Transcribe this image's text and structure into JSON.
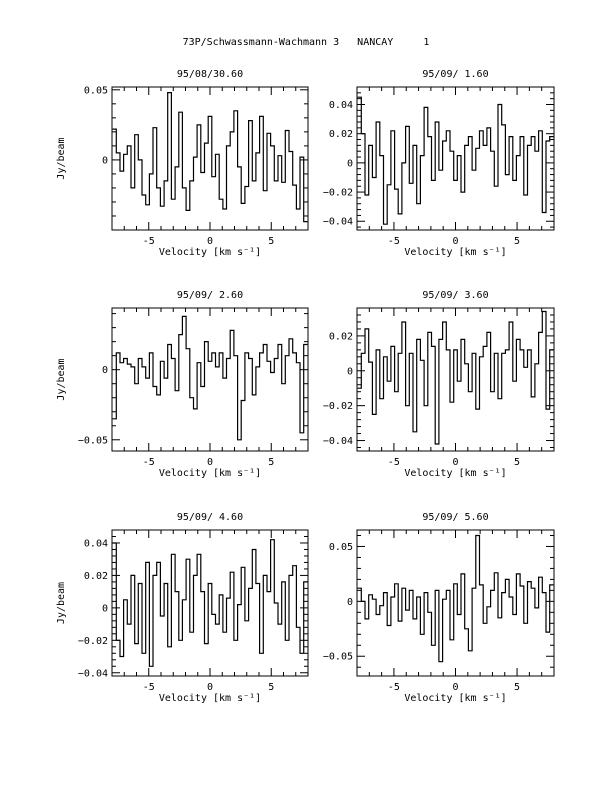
{
  "page": {
    "title": "73P/Schwassmann-Wachmann 3   NANCAY     1"
  },
  "chart_data": [
    {
      "type": "line",
      "title": "95/08/30.60",
      "xlabel": "Velocity [km s⁻¹]",
      "ylabel": "Jy/beam",
      "xlim": [
        -8,
        8
      ],
      "ylim": [
        -0.05,
        0.052
      ],
      "xticks": [
        -5,
        0,
        5
      ],
      "yticks": [
        0.05,
        0
      ],
      "ytick_labels": [
        "0.05",
        "0"
      ],
      "x": [
        -7.8,
        -7.5,
        -7.2,
        -6.9,
        -6.6,
        -6.3,
        -6.0,
        -5.7,
        -5.4,
        -5.1,
        -4.8,
        -4.5,
        -4.2,
        -3.9,
        -3.6,
        -3.3,
        -3.0,
        -2.7,
        -2.4,
        -2.1,
        -1.8,
        -1.5,
        -1.2,
        -0.9,
        -0.6,
        -0.3,
        0.0,
        0.3,
        0.6,
        0.9,
        1.2,
        1.5,
        1.8,
        2.1,
        2.4,
        2.7,
        3.0,
        3.3,
        3.6,
        3.9,
        4.2,
        4.5,
        4.8,
        5.1,
        5.4,
        5.7,
        6.0,
        6.3,
        6.6,
        6.9,
        7.2,
        7.5,
        7.8
      ],
      "values": [
        0.022,
        0.005,
        -0.008,
        0.004,
        0.01,
        -0.02,
        0.018,
        0.0,
        -0.025,
        -0.032,
        -0.01,
        0.023,
        -0.02,
        -0.033,
        -0.015,
        0.048,
        -0.028,
        -0.005,
        0.034,
        -0.02,
        -0.036,
        -0.015,
        0.002,
        0.025,
        -0.009,
        0.012,
        0.031,
        -0.012,
        0.004,
        -0.028,
        -0.035,
        0.01,
        0.02,
        0.035,
        -0.005,
        -0.031,
        -0.019,
        0.028,
        -0.015,
        0.005,
        0.031,
        -0.022,
        0.019,
        0.01,
        -0.015,
        0.003,
        -0.016,
        0.021,
        0.006,
        -0.018,
        -0.035,
        0.002,
        -0.044
      ]
    },
    {
      "type": "line",
      "title": "95/09/ 1.60",
      "xlabel": "Velocity [km s⁻¹]",
      "ylabel": "",
      "xlim": [
        -8,
        8
      ],
      "ylim": [
        -0.046,
        0.052
      ],
      "xticks": [
        -5,
        0,
        5
      ],
      "yticks": [
        0.04,
        0.02,
        0,
        -0.02,
        -0.04
      ],
      "ytick_labels": [
        "0.04",
        "0.02",
        "0",
        "−0.02",
        "−0.04"
      ],
      "x": [
        -7.8,
        -7.5,
        -7.2,
        -6.9,
        -6.6,
        -6.3,
        -6.0,
        -5.7,
        -5.4,
        -5.1,
        -4.8,
        -4.5,
        -4.2,
        -3.9,
        -3.6,
        -3.3,
        -3.0,
        -2.7,
        -2.4,
        -2.1,
        -1.8,
        -1.5,
        -1.2,
        -0.9,
        -0.6,
        -0.3,
        0.0,
        0.3,
        0.6,
        0.9,
        1.2,
        1.5,
        1.8,
        2.1,
        2.4,
        2.7,
        3.0,
        3.3,
        3.6,
        3.9,
        4.2,
        4.5,
        4.8,
        5.1,
        5.4,
        5.7,
        6.0,
        6.3,
        6.6,
        6.9,
        7.2,
        7.5,
        7.8
      ],
      "values": [
        0.045,
        0.02,
        -0.022,
        0.012,
        -0.01,
        0.028,
        0.005,
        -0.042,
        -0.015,
        0.022,
        -0.018,
        -0.035,
        0.0,
        0.025,
        -0.014,
        0.012,
        -0.028,
        0.005,
        0.038,
        0.018,
        -0.012,
        0.028,
        -0.005,
        0.015,
        0.022,
        0.008,
        -0.012,
        0.005,
        -0.02,
        0.012,
        0.018,
        -0.005,
        0.01,
        0.022,
        0.012,
        0.024,
        0.008,
        -0.016,
        0.04,
        0.026,
        -0.008,
        0.018,
        -0.012,
        0.005,
        0.018,
        -0.022,
        0.012,
        0.018,
        0.008,
        0.022,
        -0.034,
        0.015,
        0.018
      ]
    },
    {
      "type": "line",
      "title": "95/09/ 2.60",
      "xlabel": "Velocity [km s⁻¹]",
      "ylabel": "Jy/beam",
      "xlim": [
        -8,
        8
      ],
      "ylim": [
        -0.058,
        0.044
      ],
      "xticks": [
        -5,
        0,
        5
      ],
      "yticks": [
        0,
        -0.05
      ],
      "ytick_labels": [
        "0",
        "−0.05"
      ],
      "x": [
        -7.8,
        -7.5,
        -7.2,
        -6.9,
        -6.6,
        -6.3,
        -6.0,
        -5.7,
        -5.4,
        -5.1,
        -4.8,
        -4.5,
        -4.2,
        -3.9,
        -3.6,
        -3.3,
        -3.0,
        -2.7,
        -2.4,
        -2.1,
        -1.8,
        -1.5,
        -1.2,
        -0.9,
        -0.6,
        -0.3,
        0.0,
        0.3,
        0.6,
        0.9,
        1.2,
        1.5,
        1.8,
        2.1,
        2.4,
        2.7,
        3.0,
        3.3,
        3.6,
        3.9,
        4.2,
        4.5,
        4.8,
        5.1,
        5.4,
        5.7,
        6.0,
        6.3,
        6.6,
        6.9,
        7.2,
        7.5,
        7.8
      ],
      "values": [
        -0.035,
        0.012,
        0.005,
        0.008,
        0.004,
        0.002,
        -0.01,
        0.008,
        0.002,
        -0.006,
        0.012,
        -0.012,
        -0.018,
        0.006,
        -0.006,
        0.018,
        0.008,
        -0.015,
        0.025,
        0.038,
        0.015,
        -0.02,
        -0.028,
        0.005,
        -0.012,
        0.02,
        0.006,
        0.012,
        0.002,
        0.012,
        -0.006,
        0.008,
        0.028,
        0.01,
        -0.05,
        -0.022,
        0.012,
        0.008,
        -0.018,
        0.002,
        0.012,
        0.018,
        0.006,
        -0.002,
        0.008,
        0.018,
        -0.01,
        0.01,
        0.022,
        0.012,
        0.005,
        -0.045,
        0.018
      ]
    },
    {
      "type": "line",
      "title": "95/09/ 3.60",
      "xlabel": "Velocity [km s⁻¹]",
      "ylabel": "",
      "xlim": [
        -8,
        8
      ],
      "ylim": [
        -0.046,
        0.036
      ],
      "xticks": [
        -5,
        0,
        5
      ],
      "yticks": [
        0.02,
        0,
        -0.02,
        -0.04
      ],
      "ytick_labels": [
        "0.02",
        "0",
        "−0.02",
        "−0.04"
      ],
      "x": [
        -7.8,
        -7.5,
        -7.2,
        -6.9,
        -6.6,
        -6.3,
        -6.0,
        -5.7,
        -5.4,
        -5.1,
        -4.8,
        -4.5,
        -4.2,
        -3.9,
        -3.6,
        -3.3,
        -3.0,
        -2.7,
        -2.4,
        -2.1,
        -1.8,
        -1.5,
        -1.2,
        -0.9,
        -0.6,
        -0.3,
        0.0,
        0.3,
        0.6,
        0.9,
        1.2,
        1.5,
        1.8,
        2.1,
        2.4,
        2.7,
        3.0,
        3.3,
        3.6,
        3.9,
        4.2,
        4.5,
        4.8,
        5.1,
        5.4,
        5.7,
        6.0,
        6.3,
        6.6,
        6.9,
        7.2,
        7.5,
        7.8
      ],
      "values": [
        -0.01,
        0.01,
        0.024,
        0.005,
        -0.025,
        0.012,
        -0.016,
        0.008,
        -0.006,
        0.014,
        -0.012,
        0.01,
        0.028,
        -0.02,
        0.01,
        -0.035,
        0.018,
        0.006,
        -0.02,
        0.022,
        0.014,
        -0.042,
        0.018,
        0.028,
        0.012,
        -0.018,
        0.012,
        -0.006,
        0.018,
        0.004,
        -0.012,
        0.01,
        -0.022,
        0.008,
        0.014,
        0.022,
        -0.012,
        0.01,
        -0.016,
        0.01,
        0.012,
        0.028,
        -0.006,
        0.018,
        0.012,
        0.002,
        0.012,
        -0.015,
        0.004,
        0.022,
        0.034,
        -0.022,
        0.012
      ]
    },
    {
      "type": "line",
      "title": "95/09/ 4.60",
      "xlabel": "Velocity [km s⁻¹]",
      "ylabel": "Jy/beam",
      "xlim": [
        -8,
        8
      ],
      "ylim": [
        -0.042,
        0.048
      ],
      "xticks": [
        -5,
        0,
        5
      ],
      "yticks": [
        0.04,
        0.02,
        0,
        -0.02,
        -0.04
      ],
      "ytick_labels": [
        "0.04",
        "0.02",
        "0",
        "−0.02",
        "−0.04"
      ],
      "x": [
        -7.8,
        -7.5,
        -7.2,
        -6.9,
        -6.6,
        -6.3,
        -6.0,
        -5.7,
        -5.4,
        -5.1,
        -4.8,
        -4.5,
        -4.2,
        -3.9,
        -3.6,
        -3.3,
        -3.0,
        -2.7,
        -2.4,
        -2.1,
        -1.8,
        -1.5,
        -1.2,
        -0.9,
        -0.6,
        -0.3,
        0.0,
        0.3,
        0.6,
        0.9,
        1.2,
        1.5,
        1.8,
        2.1,
        2.4,
        2.7,
        3.0,
        3.3,
        3.6,
        3.9,
        4.2,
        4.5,
        4.8,
        5.1,
        5.4,
        5.7,
        6.0,
        6.3,
        6.6,
        6.9,
        7.2,
        7.5,
        7.8
      ],
      "values": [
        0.04,
        -0.02,
        -0.03,
        0.005,
        -0.01,
        0.02,
        -0.022,
        0.015,
        -0.028,
        0.028,
        -0.036,
        0.02,
        0.028,
        -0.005,
        0.015,
        -0.024,
        0.033,
        0.01,
        -0.02,
        0.005,
        0.03,
        -0.015,
        0.02,
        0.033,
        0.01,
        -0.022,
        0.015,
        -0.004,
        -0.01,
        0.008,
        -0.015,
        0.006,
        0.022,
        -0.02,
        0.002,
        0.025,
        -0.008,
        0.012,
        0.036,
        0.015,
        -0.028,
        0.02,
        0.01,
        0.042,
        0.003,
        -0.01,
        0.016,
        -0.02,
        0.02,
        0.026,
        -0.012,
        -0.028,
        0.016
      ]
    },
    {
      "type": "line",
      "title": "95/09/ 5.60",
      "xlabel": "Velocity [km s⁻¹]",
      "ylabel": "",
      "xlim": [
        -8,
        8
      ],
      "ylim": [
        -0.068,
        0.065
      ],
      "xticks": [
        -5,
        0,
        5
      ],
      "yticks": [
        0.05,
        0,
        -0.05
      ],
      "ytick_labels": [
        "0.05",
        "0",
        "−0.05"
      ],
      "x": [
        -7.8,
        -7.5,
        -7.2,
        -6.9,
        -6.6,
        -6.3,
        -6.0,
        -5.7,
        -5.4,
        -5.1,
        -4.8,
        -4.5,
        -4.2,
        -3.9,
        -3.6,
        -3.3,
        -3.0,
        -2.7,
        -2.4,
        -2.1,
        -1.8,
        -1.5,
        -1.2,
        -0.9,
        -0.6,
        -0.3,
        0.0,
        0.3,
        0.6,
        0.9,
        1.2,
        1.5,
        1.8,
        2.1,
        2.4,
        2.7,
        3.0,
        3.3,
        3.6,
        3.9,
        4.2,
        4.5,
        4.8,
        5.1,
        5.4,
        5.7,
        6.0,
        6.3,
        6.6,
        6.9,
        7.2,
        7.5,
        7.8
      ],
      "values": [
        0.012,
        0.0,
        -0.016,
        0.006,
        0.002,
        -0.012,
        -0.004,
        0.008,
        -0.022,
        0.004,
        0.016,
        -0.018,
        0.012,
        -0.008,
        0.01,
        -0.016,
        0.004,
        -0.03,
        0.008,
        -0.01,
        -0.04,
        0.01,
        -0.055,
        0.002,
        0.01,
        -0.035,
        0.016,
        -0.012,
        0.025,
        -0.025,
        -0.045,
        0.012,
        0.06,
        0.015,
        -0.02,
        -0.005,
        0.01,
        0.026,
        -0.015,
        0.008,
        0.02,
        0.004,
        -0.012,
        0.025,
        0.014,
        -0.02,
        0.018,
        0.012,
        -0.006,
        0.022,
        0.008,
        -0.028,
        0.015
      ]
    }
  ]
}
